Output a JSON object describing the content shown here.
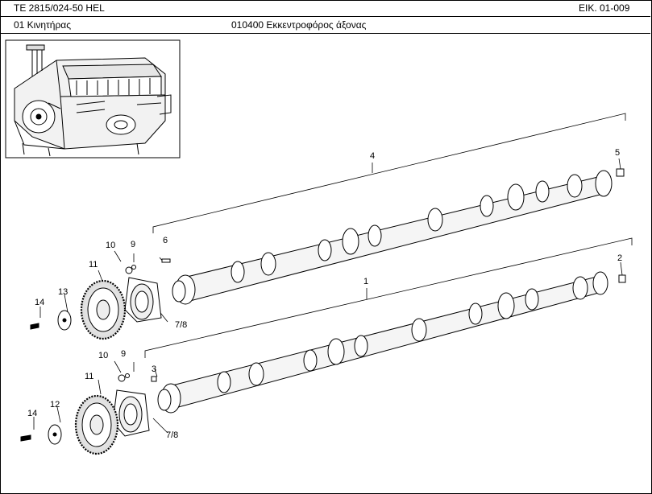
{
  "header": {
    "model": "TE 2815/024-50 HEL",
    "figure": "EIK. 01-009",
    "group": "01  Κινητήρας",
    "assembly": "010400  Εκκεντροφόρος άξονας"
  },
  "callouts": {
    "c1": "1",
    "c2": "2",
    "c3": "3",
    "c4": "4",
    "c5": "5",
    "c6": "6",
    "c9a": "9",
    "c10a": "10",
    "c11a": "11",
    "c13": "13",
    "c14a": "14",
    "c78a": "7/8",
    "c9b": "9",
    "c10b": "10",
    "c11b": "11",
    "c12": "12",
    "c14b": "14",
    "c78b": "7/8"
  }
}
